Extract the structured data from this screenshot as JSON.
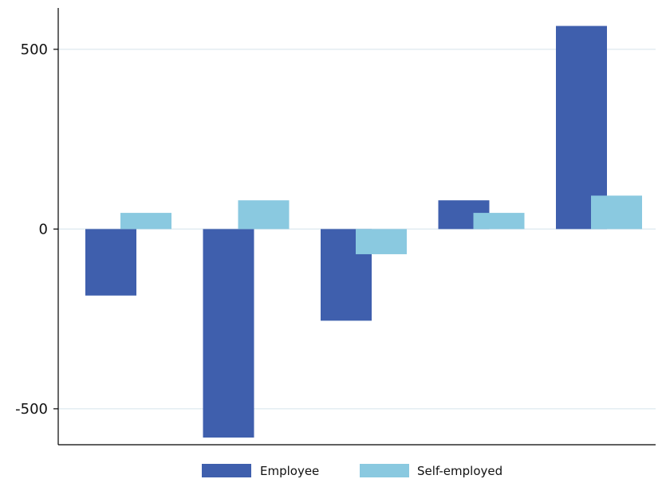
{
  "chart_data": {
    "type": "bar",
    "title": "",
    "xlabel": "",
    "ylabel": "",
    "categories": [
      "",
      "",
      "",
      "",
      ""
    ],
    "series": [
      {
        "name": "Employee",
        "color": "#3f5fad",
        "values": [
          -185,
          -580,
          -255,
          80,
          565
        ]
      },
      {
        "name": "Self-employed",
        "color": "#8ac9e0",
        "values": [
          45,
          80,
          -70,
          45,
          93
        ]
      }
    ],
    "ylim": [
      -600,
      615
    ],
    "yticks": [
      {
        "value": -500,
        "label": "-500"
      },
      {
        "value": 0,
        "label": "0"
      },
      {
        "value": 500,
        "label": "500"
      }
    ],
    "grid": true,
    "grid_color": "#dde8ef",
    "legend_position": "bottom"
  }
}
